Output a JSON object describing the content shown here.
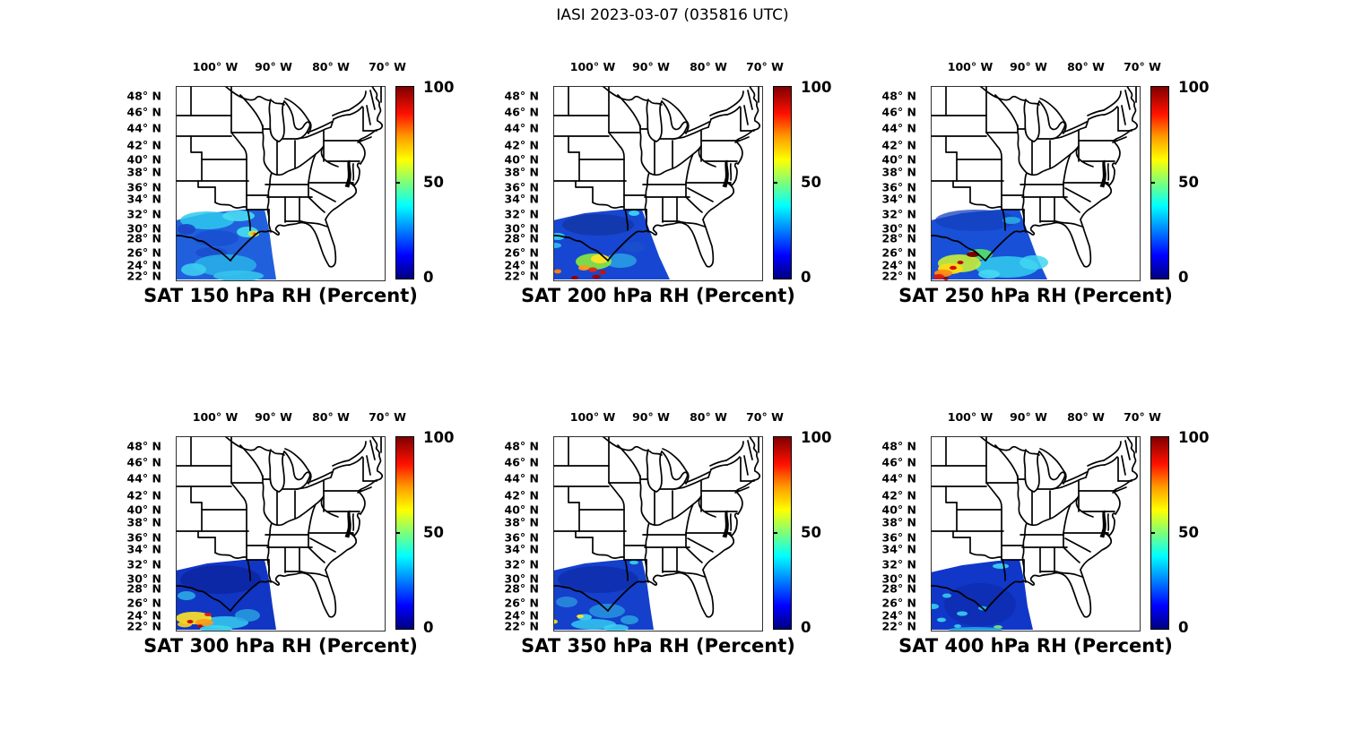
{
  "figure": {
    "title": "IASI 2023-03-07 (035816 UTC)",
    "background": "#ffffff"
  },
  "chart_data": {
    "type": "heatmap",
    "title": "IASI 2023-03-07 (035816 UTC)",
    "satellite": "IASI",
    "date": "2023-03-07",
    "time_utc": "035816",
    "variable": "SAT RH (Percent)",
    "map_region": "Eastern United States with state boundaries; satellite RH swath over Texas / western Gulf of Mexico (approx 107W-88W, 21N-33N)",
    "grid": false,
    "x_ticks": [
      "100° W",
      "90° W",
      "80° W",
      "70° W"
    ],
    "y_ticks": [
      "48° N",
      "46° N",
      "44° N",
      "42° N",
      "40° N",
      "38° N",
      "36° N",
      "34° N",
      "32° N",
      "30° N",
      "28° N",
      "26° N",
      "24° N",
      "22° N"
    ],
    "xlim_deg_west": [
      107,
      65
    ],
    "ylim_deg_north": [
      21,
      50
    ],
    "colorbar": {
      "min": 0,
      "max": 100,
      "tick_labels": [
        "100",
        "50",
        "0"
      ],
      "colormap": "jet",
      "gradient_stops": [
        [
          "#00007f",
          0
        ],
        [
          "#0000ff",
          0.12
        ],
        [
          "#00ffff",
          0.38
        ],
        [
          "#7dff7a",
          0.5
        ],
        [
          "#ffff00",
          0.62
        ],
        [
          "#ff9b00",
          0.74
        ],
        [
          "#ff1000",
          0.86
        ],
        [
          "#7f0000",
          1
        ]
      ]
    },
    "panels": [
      {
        "id": "sat-150-hpa",
        "level_hPa": 150,
        "title": "SAT 150 hPa RH (Percent)",
        "summary": "RH mostly 15-40% (blue/cyan); small 60-90% spot near Louisiana coast; cyan band along south edge",
        "swath": {
          "outline": "0,150 35,142 75,138 99,138 104,160 108,190 112,216 0,216",
          "base_color": "#2060dd",
          "blobs": [
            [
              35,
              150,
              30,
              10,
              "#2ec9ee",
              0.85
            ],
            [
              70,
              145,
              18,
              6,
              "#49dcf2",
              0.9
            ],
            [
              12,
              160,
              10,
              6,
              "#1b45c8",
              0.9
            ],
            [
              45,
              170,
              25,
              9,
              "#1850d0",
              0.9
            ],
            [
              40,
              186,
              18,
              6,
              "#1a4ecd",
              0.85
            ],
            [
              80,
              163,
              12,
              6,
              "#45d8f0",
              0.95
            ],
            [
              87,
              165,
              6,
              3.5,
              "#b8f04e",
              0.95
            ],
            [
              87,
              165,
              3.5,
              2,
              "#ffb020",
              1
            ],
            [
              88,
              165,
              1.6,
              1.2,
              "#ff4010",
              1
            ],
            [
              55,
              200,
              35,
              12,
              "#2bb7e8",
              0.8
            ],
            [
              20,
              205,
              14,
              7,
              "#3ccdf0",
              0.9
            ],
            [
              70,
              212,
              28,
              6,
              "#35c3ec",
              0.9
            ]
          ]
        }
      },
      {
        "id": "sat-200-hpa",
        "level_hPa": 200,
        "title": "SAT 200 hPa RH (Percent)",
        "summary": "Mostly 10-30%; yellow-green 50-70% blob with red/dark-red 80-100% specks near 23-25N; orange spot at west edge",
        "swath": {
          "outline": "0,150 35,142 75,138 99,138 107,160 118,190 130,216 0,216",
          "base_color": "#1747d2",
          "blobs": [
            [
              50,
              155,
              40,
              12,
              "#13339f",
              0.7
            ],
            [
              5,
              168,
              8,
              4,
              "#36d0f0",
              0.9
            ],
            [
              2,
              178,
              7,
              3,
              "#2ec9ee",
              0.85
            ],
            [
              90,
              142,
              6,
              3,
              "#3ad4f0",
              0.95
            ],
            [
              75,
              195,
              18,
              8,
              "#2aa8e4",
              0.8
            ],
            [
              90,
              180,
              12,
              6,
              "#1a50cc",
              0.8
            ],
            [
              45,
              196,
              20,
              9,
              "#8ae93c",
              0.9
            ],
            [
              52,
              193,
              10,
              5,
              "#ffe426",
              0.95
            ],
            [
              34,
              203,
              6,
              3,
              "#ff9a1a",
              0.95
            ],
            [
              44,
              205,
              5,
              2.6,
              "#e82810",
              0.95
            ],
            [
              55,
              208,
              4,
              2.2,
              "#d01000",
              0.95
            ],
            [
              24,
              214,
              4,
              2,
              "#8f0000",
              1
            ],
            [
              48,
              213,
              5,
              2.2,
              "#9a0500",
              1
            ],
            [
              5,
              207,
              4,
              2.4,
              "#ff7a10",
              1
            ]
          ]
        }
      },
      {
        "id": "sat-250-hpa",
        "level_hPa": 250,
        "title": "SAT 250 hPa RH (Percent)",
        "summary": "Blue north; strong 60-100% yellow/orange/red plume in SW corner (22-26N); broad cyan 30-45% region SE",
        "swath": {
          "outline": "0,150 35,142 75,138 99,138 107,160 118,190 130,216 0,216",
          "base_color": "#1850d8",
          "blobs": [
            [
              50,
              150,
              45,
              12,
              "#1340bd",
              0.75
            ],
            [
              90,
              150,
              10,
              4,
              "#2db8ea",
              0.8
            ],
            [
              85,
              202,
              35,
              12,
              "#33cdef",
              0.85
            ],
            [
              115,
              197,
              16,
              8,
              "#3fd6f1",
              0.85
            ],
            [
              65,
              210,
              12,
              5,
              "#46d9f1",
              0.9
            ],
            [
              55,
              188,
              14,
              6,
              "#57e06a",
              0.9
            ],
            [
              32,
              198,
              24,
              10,
              "#c8f036",
              0.9
            ],
            [
              22,
              204,
              14,
              6,
              "#ffd918",
              0.95
            ],
            [
              14,
              209,
              10,
              4,
              "#ff8c10",
              0.95
            ],
            [
              9,
              213,
              6,
              3,
              "#e01808",
              0.95
            ],
            [
              25,
              203,
              4,
              2.2,
              "#d81000",
              1
            ],
            [
              33,
              197,
              3.5,
              2,
              "#c00800",
              1
            ],
            [
              47,
              188,
              7,
              3,
              "#7a0000",
              1
            ],
            [
              17,
              215,
              3,
              1.8,
              "#8f0000",
              1
            ]
          ]
        }
      },
      {
        "id": "sat-300-hpa",
        "level_hPa": 300,
        "title": "SAT 300 hPa RH (Percent)",
        "summary": "Dark blue (<15%) north; yellow/orange streaks with red specks 70-90% along SW corner; cyan band at south edge",
        "swath": {
          "outline": "0,150 35,142 75,138 99,138 104,160 108,190 112,216 0,216",
          "base_color": "#1136c4",
          "blobs": [
            [
              50,
              160,
              45,
              16,
              "#0c259f",
              0.8
            ],
            [
              12,
              178,
              10,
              5,
              "#2db0e6",
              0.85
            ],
            [
              55,
              208,
              26,
              7,
              "#36ccee",
              0.85
            ],
            [
              80,
              200,
              14,
              7,
              "#2aa6e2",
              0.8
            ],
            [
              45,
              215,
              18,
              4,
              "#40d5f0",
              0.9
            ],
            [
              20,
              203,
              20,
              7,
              "#ffe426",
              0.9
            ],
            [
              32,
              208,
              10,
              4,
              "#ff9a14",
              0.9
            ],
            [
              10,
              210,
              8,
              3.4,
              "#ffd020",
              0.9
            ],
            [
              36,
              199,
              4,
              2,
              "#e01808",
              0.95
            ],
            [
              16,
              207,
              3.5,
              2,
              "#d01000",
              1
            ],
            [
              27,
              212,
              3,
              1.8,
              "#b00800",
              1
            ]
          ]
        }
      },
      {
        "id": "sat-350-hpa",
        "level_hPa": 350,
        "title": "SAT 350 hPa RH (Percent)",
        "summary": "Mostly 10-25% blue; scattered cyan patches and two small yellow 55-65% spots near 22-24N",
        "swath": {
          "outline": "0,150 35,142 75,138 99,138 104,160 108,190 112,216 0,216",
          "base_color": "#1440cc",
          "blobs": [
            [
              50,
              160,
              45,
              15,
              "#0e2ca8",
              0.75
            ],
            [
              15,
              185,
              12,
              6,
              "#2f9fe0",
              0.7
            ],
            [
              60,
              195,
              20,
              8,
              "#28a0e2",
              0.75
            ],
            [
              35,
              202,
              8,
              3.5,
              "#3fd4f0",
              0.9
            ],
            [
              45,
              210,
              25,
              6,
              "#33c8ee",
              0.85
            ],
            [
              70,
              214,
              14,
              4,
              "#3cd2f0",
              0.85
            ],
            [
              85,
              205,
              10,
              5,
              "#2aa8e4",
              0.8
            ],
            [
              90,
              141,
              5,
              2.2,
              "#38d2f0",
              0.9
            ],
            [
              30,
              201,
              4,
              2,
              "#ffe426",
              0.95
            ],
            [
              0,
              207,
              5,
              2.5,
              "#f0e020",
              0.95
            ]
          ]
        }
      },
      {
        "id": "sat-400-hpa",
        "level_hPa": 400,
        "title": "SAT 400 hPa RH (Percent)",
        "summary": "Uniform dark blue 5-20%; small scattered cyan 30-40% speckles; cyan patch at swath NE corner",
        "swath": {
          "outline": "0,152 35,144 75,139 99,138 104,160 108,190 114,216 0,216",
          "base_color": "#1137c9",
          "blobs": [
            [
              55,
              188,
              40,
              24,
              "#0d2aaa",
              0.65
            ],
            [
              3,
              190,
              6,
              3,
              "#35ceef",
              0.9
            ],
            [
              18,
              178,
              5,
              2.5,
              "#3ad2f0",
              0.85
            ],
            [
              35,
              198,
              6,
              2.6,
              "#36cfef",
              0.9
            ],
            [
              12,
              205,
              5,
              2.4,
              "#3fd5f0",
              0.9
            ],
            [
              58,
              192,
              5,
              2.4,
              "#2fc4ec",
              0.85
            ],
            [
              78,
              145,
              9,
              3,
              "#40d6f0",
              0.9
            ],
            [
              30,
              212,
              4,
              2,
              "#39d1f0",
              0.9
            ],
            [
              75,
              213,
              5,
              2,
              "#7de87a",
              0.9
            ],
            [
              50,
              216,
              30,
              3,
              "#2bb4e6",
              0.8
            ]
          ]
        }
      }
    ]
  }
}
